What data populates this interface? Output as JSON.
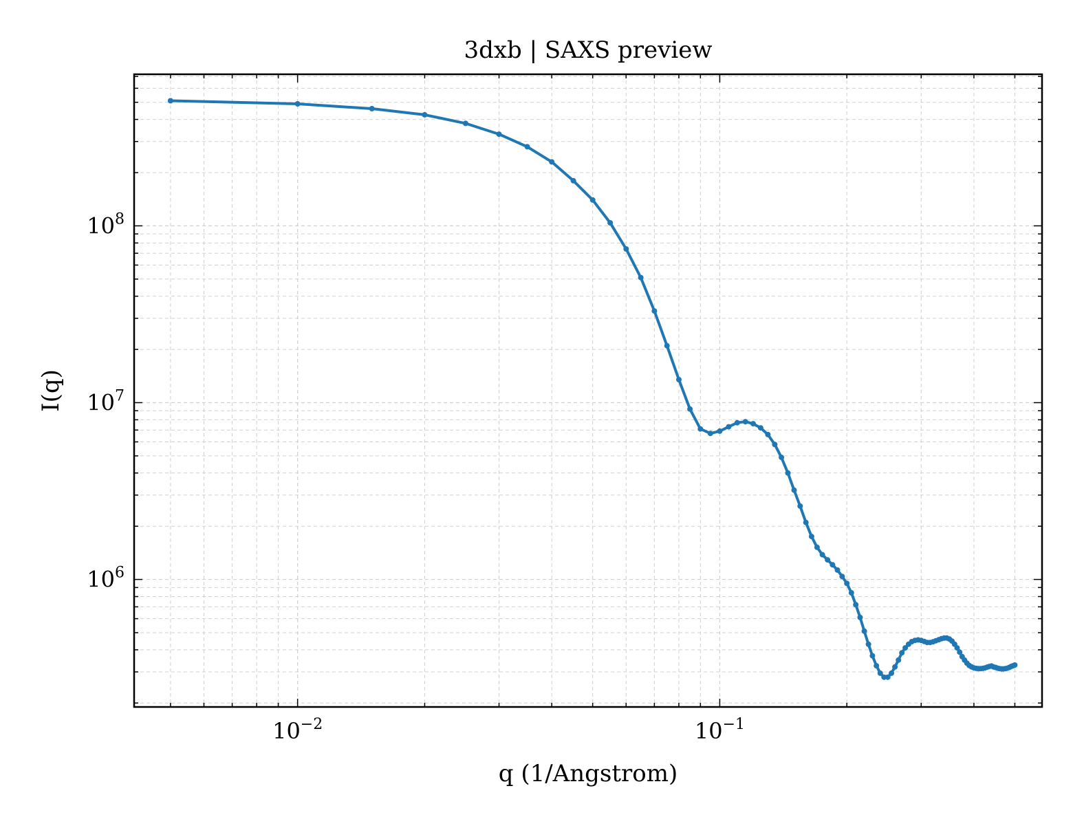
{
  "chart_data": {
    "type": "line",
    "title": "3dxb | SAXS preview",
    "xlabel": "q (1/Angstrom)",
    "ylabel": "I(q)",
    "x_scale": "log",
    "y_scale": "log",
    "xlim": [
      0.0041,
      0.58
    ],
    "ylim": [
      190000,
      720000000
    ],
    "x_ticks": [
      {
        "value": 0.01,
        "base": "10",
        "exp": "−2"
      },
      {
        "value": 0.1,
        "base": "10",
        "exp": "−1"
      }
    ],
    "y_ticks": [
      {
        "value": 1000000,
        "base": "10",
        "exp": "6"
      },
      {
        "value": 10000000,
        "base": "10",
        "exp": "7"
      },
      {
        "value": 100000000,
        "base": "10",
        "exp": "8"
      }
    ],
    "grid": true,
    "legend": "none",
    "colors": {
      "series": "#1f77b4",
      "grid": "#d0d0d0",
      "axes": "#000000"
    },
    "series": [
      {
        "x": [
          0.005,
          0.01,
          0.015,
          0.02,
          0.025,
          0.03,
          0.035,
          0.04,
          0.045,
          0.05,
          0.055,
          0.06,
          0.065,
          0.07,
          0.075,
          0.08,
          0.085,
          0.09,
          0.095,
          0.1,
          0.105,
          0.11,
          0.115,
          0.12,
          0.125,
          0.13,
          0.135,
          0.14,
          0.145,
          0.15,
          0.155,
          0.16,
          0.165,
          0.17,
          0.175,
          0.18,
          0.185,
          0.19,
          0.195,
          0.2,
          0.205,
          0.21,
          0.215,
          0.22,
          0.225,
          0.23,
          0.235,
          0.24,
          0.245,
          0.25,
          0.255,
          0.26,
          0.265,
          0.27,
          0.275,
          0.28,
          0.285,
          0.29,
          0.295,
          0.3,
          0.305,
          0.31,
          0.315,
          0.32,
          0.325,
          0.33,
          0.335,
          0.34,
          0.345,
          0.35,
          0.355,
          0.36,
          0.365,
          0.37,
          0.375,
          0.38,
          0.385,
          0.39,
          0.395,
          0.4,
          0.405,
          0.41,
          0.415,
          0.42,
          0.425,
          0.43,
          0.435,
          0.44,
          0.445,
          0.45,
          0.455,
          0.46,
          0.465,
          0.47,
          0.475,
          0.48,
          0.485,
          0.49,
          0.495,
          0.5
        ],
        "y": [
          510000000,
          490000000,
          460000000,
          425000000,
          380000000,
          330000000,
          280000000,
          230000000,
          180000000,
          140000000,
          104000000,
          74000000,
          51000000,
          33000000,
          21000000,
          13500000,
          9200000,
          7100000,
          6700000,
          6900000,
          7300000,
          7700000,
          7800000,
          7600000,
          7200000,
          6600000,
          5800000,
          4900000,
          4000000,
          3200000,
          2600000,
          2100000,
          1750000,
          1520000,
          1380000,
          1290000,
          1210000,
          1130000,
          1040000,
          950000,
          840000,
          720000,
          610000,
          510000,
          430000,
          370000,
          325000,
          295000,
          280000,
          280000,
          295000,
          320000,
          350000,
          385000,
          410000,
          430000,
          445000,
          452000,
          455000,
          452000,
          446000,
          440000,
          440000,
          444000,
          450000,
          456000,
          462000,
          466000,
          466000,
          460000,
          448000,
          430000,
          410000,
          388000,
          366000,
          350000,
          336000,
          326000,
          320000,
          316000,
          314000,
          313000,
          313000,
          314000,
          316000,
          319000,
          322000,
          324000,
          320000,
          318000,
          315000,
          313000,
          312000,
          312000,
          313000,
          315000,
          318000,
          322000,
          325000,
          328000
        ]
      }
    ]
  }
}
